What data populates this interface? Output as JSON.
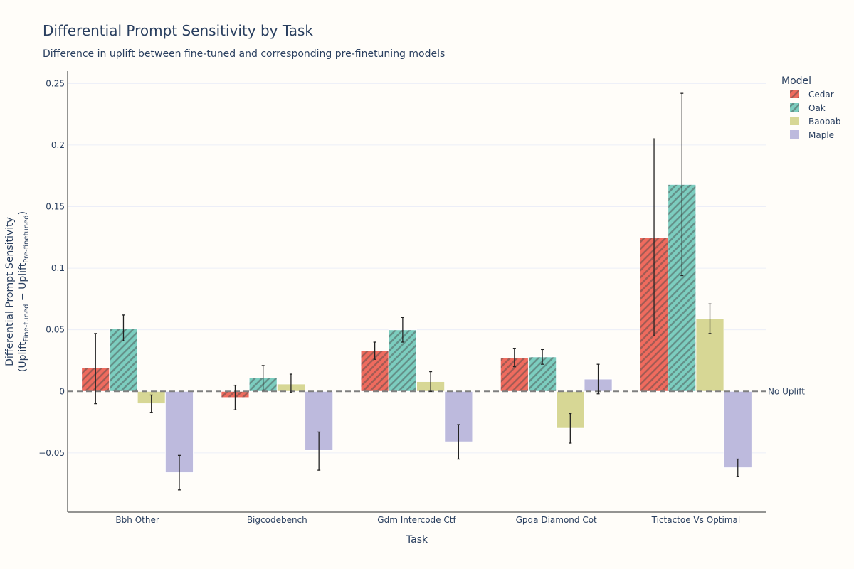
{
  "chart_data": {
    "type": "bar",
    "title": "Differential Prompt Sensitivity by Task",
    "subtitle": "Difference in uplift between fine-tuned and corresponding pre-finetuning models",
    "xlabel": "Task",
    "ylabel": {
      "line1": "Differential Prompt Sensitivity",
      "open": "(Uplift",
      "sub1": "Fine-tuned",
      "minus": " − Uplift",
      "sub2": "Pre-finetuned",
      "close": ")"
    },
    "categories": [
      "Bbh Other",
      "Bigcodebench",
      "Gdm Intercode Ctf",
      "Gpqa Diamond Cot",
      "Tictactoe Vs Optimal"
    ],
    "ylim": [
      -0.098,
      0.26
    ],
    "yticks": [
      -0.05,
      0,
      0.05,
      0.1,
      0.15,
      0.2,
      0.25
    ],
    "ytick_labels": [
      "−0.05",
      "0",
      "0.05",
      "0.1",
      "0.15",
      "0.2",
      "0.25"
    ],
    "legend_title": "Model",
    "reference_line": {
      "value": 0,
      "label": "No Uplift"
    },
    "series": [
      {
        "name": "Cedar",
        "color": "#ef6b5e",
        "hatch": true,
        "values": [
          0.019,
          -0.005,
          0.033,
          0.027,
          0.125
        ],
        "err_low": [
          -0.01,
          -0.015,
          0.026,
          0.02,
          0.045
        ],
        "err_high": [
          0.047,
          0.005,
          0.04,
          0.035,
          0.205
        ]
      },
      {
        "name": "Oak",
        "color": "#7ccdbf",
        "hatch": true,
        "values": [
          0.051,
          0.011,
          0.05,
          0.028,
          0.168
        ],
        "err_low": [
          0.041,
          0.001,
          0.04,
          0.022,
          0.094
        ],
        "err_high": [
          0.062,
          0.021,
          0.06,
          0.034,
          0.242
        ]
      },
      {
        "name": "Baobab",
        "color": "#d7d795",
        "hatch": false,
        "values": [
          -0.01,
          0.006,
          0.008,
          -0.03,
          0.059
        ],
        "err_low": [
          -0.017,
          -0.001,
          0.0,
          -0.042,
          0.047
        ],
        "err_high": [
          -0.003,
          0.014,
          0.016,
          -0.018,
          0.071
        ]
      },
      {
        "name": "Maple",
        "color": "#bdbadd",
        "hatch": false,
        "values": [
          -0.066,
          -0.048,
          -0.041,
          0.01,
          -0.062
        ],
        "err_low": [
          -0.08,
          -0.064,
          -0.055,
          -0.002,
          -0.069
        ],
        "err_high": [
          -0.052,
          -0.033,
          -0.027,
          0.022,
          -0.055
        ]
      }
    ]
  }
}
